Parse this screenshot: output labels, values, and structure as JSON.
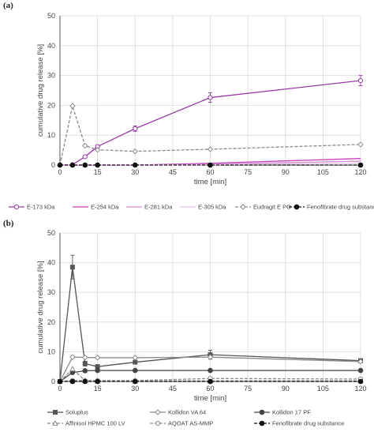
{
  "chart_data": [
    {
      "type": "line",
      "panel_label": "(a)",
      "xlabel": "time [min]",
      "ylabel": "cumulative drug release [%]",
      "xlim": [
        0,
        120
      ],
      "ylim": [
        0,
        50
      ],
      "xticks": [
        0,
        15,
        30,
        45,
        60,
        75,
        90,
        105,
        120
      ],
      "yticks": [
        0,
        10,
        20,
        30,
        40,
        50
      ],
      "grid": true,
      "legend_position": "bottom",
      "series": [
        {
          "name": "E-173 kDa",
          "color": "#9a3ba8",
          "dash": "solid",
          "marker": "open-circle",
          "x": [
            0,
            5,
            10,
            15,
            30,
            60,
            120
          ],
          "y": [
            0,
            0.1,
            2.8,
            6.2,
            12.2,
            22.6,
            28.3
          ],
          "err": [
            0,
            0,
            0.3,
            0.5,
            0.9,
            1.6,
            1.7
          ]
        },
        {
          "name": "E-254 kDa",
          "color": "#c23fbd",
          "dash": "solid",
          "marker": "none",
          "x": [
            0,
            5,
            10,
            15,
            30,
            60,
            120
          ],
          "y": [
            0,
            0,
            0,
            0,
            0,
            0.6,
            2.2
          ],
          "err": []
        },
        {
          "name": "E-281 kDa",
          "color": "#d08ad0",
          "dash": "solid",
          "marker": "none",
          "x": [
            0,
            5,
            10,
            15,
            30,
            60,
            120
          ],
          "y": [
            0,
            0,
            0,
            0,
            0,
            0.3,
            1.3
          ],
          "err": []
        },
        {
          "name": "E-305 kDa",
          "color": "#e6c2e6",
          "dash": "solid",
          "marker": "none",
          "x": [
            0,
            5,
            10,
            15,
            30,
            60,
            120
          ],
          "y": [
            0,
            0,
            0,
            0,
            0,
            0.1,
            0.6
          ],
          "err": []
        },
        {
          "name": "Eudragit E PO",
          "color": "#8a8a8a",
          "dash": "dashed",
          "marker": "open-diamond",
          "x": [
            0,
            5,
            10,
            15,
            30,
            60,
            120
          ],
          "y": [
            0,
            19.8,
            6.5,
            5.1,
            4.6,
            5.3,
            6.9
          ],
          "err": []
        },
        {
          "name": "Fenofibrate drug substance",
          "color": "#111111",
          "dash": "dashed",
          "marker": "filled-circle",
          "x": [
            0,
            5,
            10,
            15,
            30,
            60,
            120
          ],
          "y": [
            0,
            0,
            0,
            0,
            0,
            0,
            0
          ],
          "err": []
        }
      ]
    },
    {
      "type": "line",
      "panel_label": "(b)",
      "xlabel": "time [min]",
      "ylabel": "cumulative drug release [%]",
      "xlim": [
        0,
        120
      ],
      "ylim": [
        0,
        50
      ],
      "xticks": [
        0,
        15,
        30,
        45,
        60,
        75,
        90,
        105,
        120
      ],
      "yticks": [
        0,
        10,
        20,
        30,
        40,
        50
      ],
      "grid": true,
      "legend_position": "bottom",
      "series": [
        {
          "name": "Soluplus",
          "color": "#555555",
          "dash": "solid",
          "marker": "filled-square",
          "x": [
            0,
            5,
            10,
            15,
            30,
            60,
            120
          ],
          "y": [
            0,
            38.5,
            6.0,
            5.0,
            6.5,
            9.0,
            7.0
          ],
          "err": [
            0,
            4.0,
            0.8,
            0.5,
            0.6,
            1.5,
            0.5
          ]
        },
        {
          "name": "Kollidon VA 64",
          "color": "#8a8a8a",
          "dash": "solid",
          "marker": "open-diamond",
          "x": [
            0,
            5,
            10,
            15,
            30,
            60,
            120
          ],
          "y": [
            0,
            8.2,
            8.1,
            8.0,
            8.0,
            8.2,
            6.7
          ],
          "err": []
        },
        {
          "name": "Kollidon 17 PF",
          "color": "#444444",
          "dash": "solid",
          "marker": "filled-circle",
          "x": [
            0,
            5,
            10,
            15,
            30,
            60,
            120
          ],
          "y": [
            0,
            3.0,
            3.6,
            3.7,
            3.7,
            3.7,
            3.7
          ],
          "err": []
        },
        {
          "name": "Affinisol HPMC 100 LV",
          "color": "#8a8a8a",
          "dash": "dashed",
          "marker": "open-triangle",
          "x": [
            0,
            5,
            10,
            15,
            30,
            60,
            120
          ],
          "y": [
            0,
            4.2,
            0.3,
            0.1,
            0.1,
            0.2,
            0.2
          ],
          "err": []
        },
        {
          "name": "AQOAT AS-MMP",
          "color": "#8a8a8a",
          "dash": "dashed",
          "marker": "open-circle",
          "x": [
            0,
            5,
            10,
            15,
            30,
            60,
            120
          ],
          "y": [
            0,
            0.3,
            0.3,
            0.3,
            0.3,
            1.0,
            0.8
          ],
          "err": []
        },
        {
          "name": "Fenofibrate drug substance",
          "color": "#111111",
          "dash": "dashed",
          "marker": "filled-circle",
          "x": [
            0,
            5,
            10,
            15,
            30,
            60,
            120
          ],
          "y": [
            0,
            0,
            0,
            0,
            0,
            0,
            0
          ],
          "err": []
        }
      ]
    }
  ]
}
